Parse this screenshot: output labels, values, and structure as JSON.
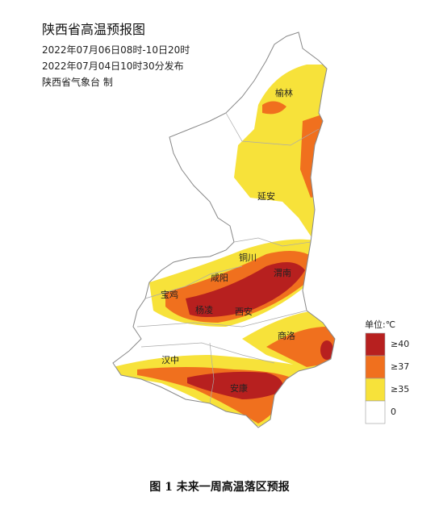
{
  "header": {
    "title": "陕西省高温预报图",
    "valid_period": "2022年07月06日08时-10日20时",
    "issued": "2022年07月04日10时30分发布",
    "issuer": "陕西省气象台 制"
  },
  "cities": [
    "榆林",
    "延安",
    "铜川",
    "渭南",
    "咸阳",
    "宝鸡",
    "杨凌",
    "西安",
    "商洛",
    "汉中",
    "安康"
  ],
  "legend": {
    "title": "单位:℃",
    "items": [
      {
        "label": "≥40",
        "color": "#b7201f"
      },
      {
        "label": "≥37",
        "color": "#f0701e"
      },
      {
        "label": "≥35",
        "color": "#f7e23a"
      },
      {
        "label": "0",
        "color": "#ffffff"
      }
    ]
  },
  "caption": "图 1  未来一周高温落区预报"
}
